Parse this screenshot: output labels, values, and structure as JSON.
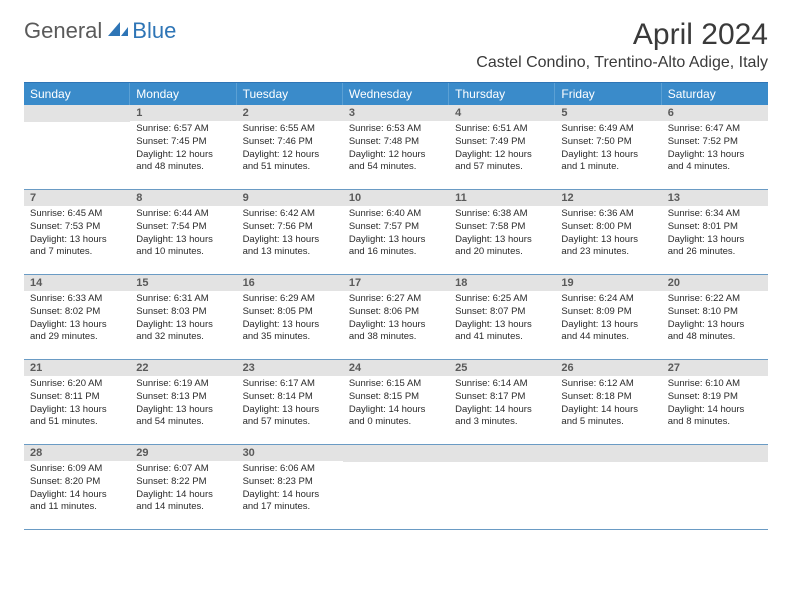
{
  "logo": {
    "general": "General",
    "blue": "Blue"
  },
  "title": "April 2024",
  "location": "Castel Condino, Trentino-Alto Adige, Italy",
  "colors": {
    "header_bar": "#3a8bca",
    "accent": "#2e75b6",
    "daynum_bg": "#e3e3e3",
    "text": "#2a2a2a",
    "row_border": "#6a9bc4"
  },
  "weekdays": [
    "Sunday",
    "Monday",
    "Tuesday",
    "Wednesday",
    "Thursday",
    "Friday",
    "Saturday"
  ],
  "weeks": [
    [
      {
        "blank": true
      },
      {
        "num": "1",
        "sunrise": "6:57 AM",
        "sunset": "7:45 PM",
        "daylight": "12 hours and 48 minutes."
      },
      {
        "num": "2",
        "sunrise": "6:55 AM",
        "sunset": "7:46 PM",
        "daylight": "12 hours and 51 minutes."
      },
      {
        "num": "3",
        "sunrise": "6:53 AM",
        "sunset": "7:48 PM",
        "daylight": "12 hours and 54 minutes."
      },
      {
        "num": "4",
        "sunrise": "6:51 AM",
        "sunset": "7:49 PM",
        "daylight": "12 hours and 57 minutes."
      },
      {
        "num": "5",
        "sunrise": "6:49 AM",
        "sunset": "7:50 PM",
        "daylight": "13 hours and 1 minute."
      },
      {
        "num": "6",
        "sunrise": "6:47 AM",
        "sunset": "7:52 PM",
        "daylight": "13 hours and 4 minutes."
      }
    ],
    [
      {
        "num": "7",
        "sunrise": "6:45 AM",
        "sunset": "7:53 PM",
        "daylight": "13 hours and 7 minutes."
      },
      {
        "num": "8",
        "sunrise": "6:44 AM",
        "sunset": "7:54 PM",
        "daylight": "13 hours and 10 minutes."
      },
      {
        "num": "9",
        "sunrise": "6:42 AM",
        "sunset": "7:56 PM",
        "daylight": "13 hours and 13 minutes."
      },
      {
        "num": "10",
        "sunrise": "6:40 AM",
        "sunset": "7:57 PM",
        "daylight": "13 hours and 16 minutes."
      },
      {
        "num": "11",
        "sunrise": "6:38 AM",
        "sunset": "7:58 PM",
        "daylight": "13 hours and 20 minutes."
      },
      {
        "num": "12",
        "sunrise": "6:36 AM",
        "sunset": "8:00 PM",
        "daylight": "13 hours and 23 minutes."
      },
      {
        "num": "13",
        "sunrise": "6:34 AM",
        "sunset": "8:01 PM",
        "daylight": "13 hours and 26 minutes."
      }
    ],
    [
      {
        "num": "14",
        "sunrise": "6:33 AM",
        "sunset": "8:02 PM",
        "daylight": "13 hours and 29 minutes."
      },
      {
        "num": "15",
        "sunrise": "6:31 AM",
        "sunset": "8:03 PM",
        "daylight": "13 hours and 32 minutes."
      },
      {
        "num": "16",
        "sunrise": "6:29 AM",
        "sunset": "8:05 PM",
        "daylight": "13 hours and 35 minutes."
      },
      {
        "num": "17",
        "sunrise": "6:27 AM",
        "sunset": "8:06 PM",
        "daylight": "13 hours and 38 minutes."
      },
      {
        "num": "18",
        "sunrise": "6:25 AM",
        "sunset": "8:07 PM",
        "daylight": "13 hours and 41 minutes."
      },
      {
        "num": "19",
        "sunrise": "6:24 AM",
        "sunset": "8:09 PM",
        "daylight": "13 hours and 44 minutes."
      },
      {
        "num": "20",
        "sunrise": "6:22 AM",
        "sunset": "8:10 PM",
        "daylight": "13 hours and 48 minutes."
      }
    ],
    [
      {
        "num": "21",
        "sunrise": "6:20 AM",
        "sunset": "8:11 PM",
        "daylight": "13 hours and 51 minutes."
      },
      {
        "num": "22",
        "sunrise": "6:19 AM",
        "sunset": "8:13 PM",
        "daylight": "13 hours and 54 minutes."
      },
      {
        "num": "23",
        "sunrise": "6:17 AM",
        "sunset": "8:14 PM",
        "daylight": "13 hours and 57 minutes."
      },
      {
        "num": "24",
        "sunrise": "6:15 AM",
        "sunset": "8:15 PM",
        "daylight": "14 hours and 0 minutes."
      },
      {
        "num": "25",
        "sunrise": "6:14 AM",
        "sunset": "8:17 PM",
        "daylight": "14 hours and 3 minutes."
      },
      {
        "num": "26",
        "sunrise": "6:12 AM",
        "sunset": "8:18 PM",
        "daylight": "14 hours and 5 minutes."
      },
      {
        "num": "27",
        "sunrise": "6:10 AM",
        "sunset": "8:19 PM",
        "daylight": "14 hours and 8 minutes."
      }
    ],
    [
      {
        "num": "28",
        "sunrise": "6:09 AM",
        "sunset": "8:20 PM",
        "daylight": "14 hours and 11 minutes."
      },
      {
        "num": "29",
        "sunrise": "6:07 AM",
        "sunset": "8:22 PM",
        "daylight": "14 hours and 14 minutes."
      },
      {
        "num": "30",
        "sunrise": "6:06 AM",
        "sunset": "8:23 PM",
        "daylight": "14 hours and 17 minutes."
      },
      {
        "blank": true
      },
      {
        "blank": true
      },
      {
        "blank": true
      },
      {
        "blank": true
      }
    ]
  ],
  "labels": {
    "sunrise": "Sunrise: ",
    "sunset": "Sunset: ",
    "daylight": "Daylight: "
  }
}
